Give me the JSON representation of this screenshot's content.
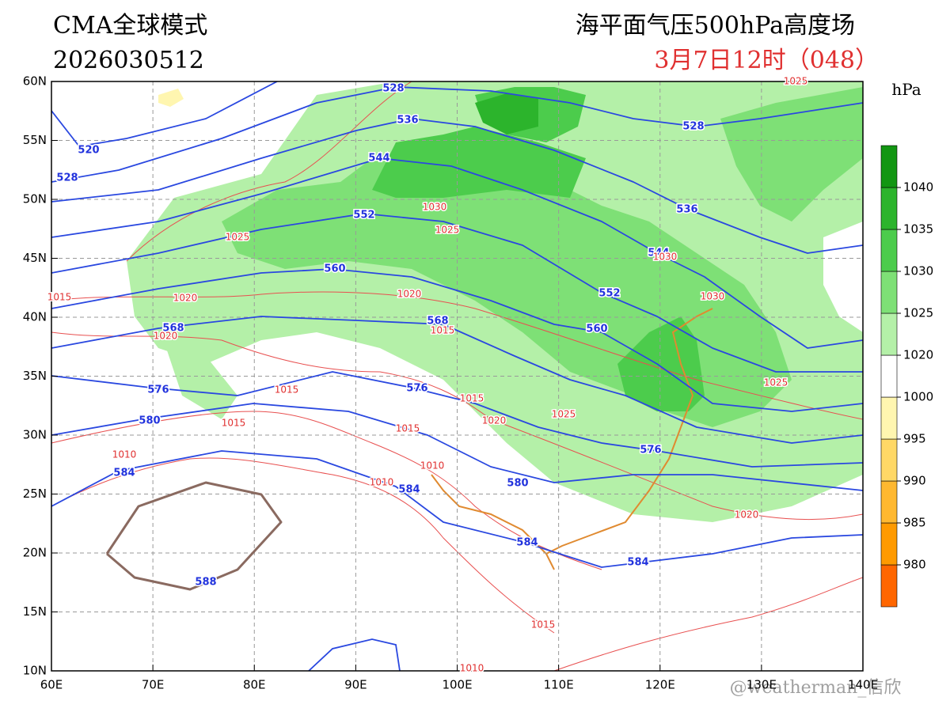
{
  "header": {
    "model": "CMA全球模式",
    "init_time": "2026030512",
    "product": "海平面气压500hPa高度场",
    "valid_time": "3月7日12时（048）"
  },
  "map": {
    "lon_ticks": [
      {
        "value": 60,
        "label": "60E"
      },
      {
        "value": 70,
        "label": "70E"
      },
      {
        "value": 80,
        "label": "80E"
      },
      {
        "value": 90,
        "label": "90E"
      },
      {
        "value": 100,
        "label": "100E"
      },
      {
        "value": 110,
        "label": "110E"
      },
      {
        "value": 120,
        "label": "120E"
      },
      {
        "value": 130,
        "label": "130E"
      },
      {
        "value": 140,
        "label": "140E"
      }
    ],
    "lat_ticks": [
      {
        "value": 60,
        "label": "60N"
      },
      {
        "value": 55,
        "label": "55N"
      },
      {
        "value": 50,
        "label": "50N"
      },
      {
        "value": 45,
        "label": "45N"
      },
      {
        "value": 40,
        "label": "40N"
      },
      {
        "value": 35,
        "label": "35N"
      },
      {
        "value": 30,
        "label": "30N"
      },
      {
        "value": 25,
        "label": "25N"
      },
      {
        "value": 20,
        "label": "20N"
      },
      {
        "value": 15,
        "label": "15N"
      },
      {
        "value": 10,
        "label": "10N"
      }
    ]
  },
  "height_contours": {
    "levels": [
      520,
      528,
      536,
      544,
      552,
      560,
      568,
      576,
      580,
      584,
      588
    ],
    "color": "#2a48e0",
    "high_color": "#8a6a60"
  },
  "height_labels": [
    520,
    528,
    528,
    528,
    536,
    536,
    544,
    544,
    552,
    552,
    560,
    560,
    568,
    568,
    576,
    576,
    576,
    580,
    580,
    584,
    584,
    584,
    584,
    588
  ],
  "pressure_labels": [
    1030,
    1025,
    1025,
    1020,
    1020,
    1020,
    1015,
    1015,
    1015,
    1010,
    1010,
    1010,
    1015,
    1020,
    1015,
    1030,
    1025,
    1020,
    1015,
    1025,
    1015,
    1010,
    1025,
    1030
  ],
  "colorbar": {
    "unit": "hPa",
    "ticks": [
      980,
      985,
      990,
      995,
      1000,
      1020,
      1025,
      1030,
      1035,
      1040
    ],
    "colors": [
      "#ff6600",
      "#ff9a00",
      "#ffb830",
      "#ffd866",
      "#fff6b0",
      "#ffffff",
      "#b4f0a8",
      "#7ee076",
      "#4ccc4c",
      "#2cb42c",
      "#129612"
    ]
  },
  "watermark": "@weatherman_信欣"
}
